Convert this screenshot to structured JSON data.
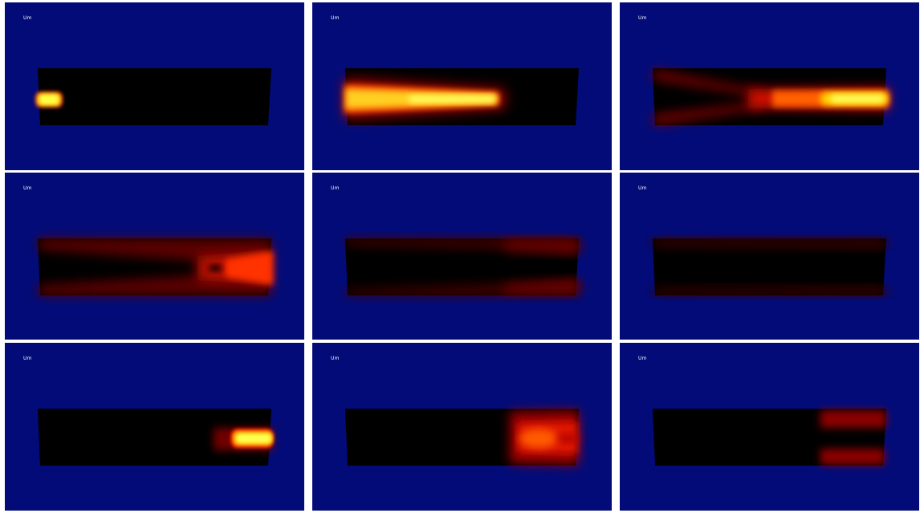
{
  "panels": [
    {
      "label": "Um"
    },
    {
      "label": "Um"
    },
    {
      "label": "Um"
    },
    {
      "label": "Um"
    },
    {
      "label": "Um"
    },
    {
      "label": "Um"
    },
    {
      "label": "Um"
    },
    {
      "label": "Um"
    },
    {
      "label": "Um"
    }
  ],
  "colors": {
    "background": "#020b78",
    "domain": "#000000",
    "separator": "#ffffff",
    "colormap": "hot"
  }
}
